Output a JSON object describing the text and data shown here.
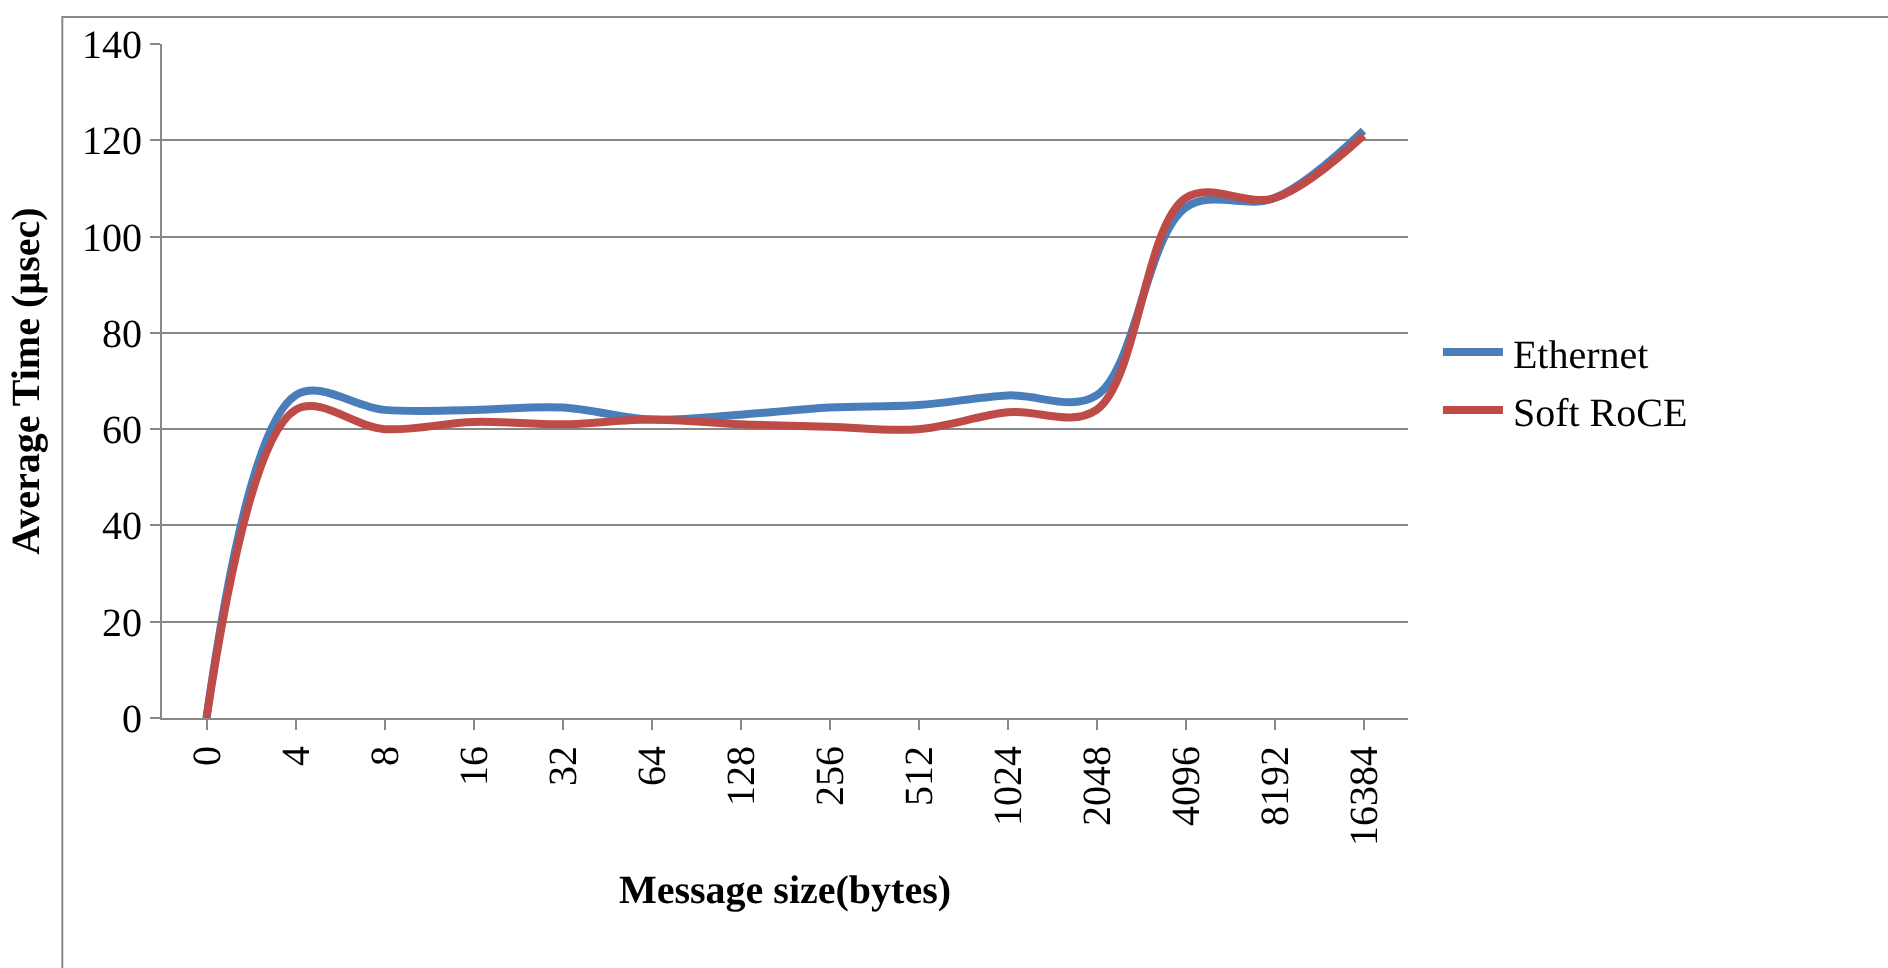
{
  "chart_data": {
    "type": "line",
    "xlabel": "Message size(bytes)",
    "ylabel": "Average Time (µsec)",
    "categories": [
      "0",
      "4",
      "8",
      "16",
      "32",
      "64",
      "128",
      "256",
      "512",
      "1024",
      "2048",
      "4096",
      "8192",
      "16384"
    ],
    "series": [
      {
        "name": "Ethernet",
        "color": "#4a7ebb",
        "values": [
          0,
          67,
          64,
          64,
          64.5,
          62,
          63,
          64.5,
          65,
          67,
          67,
          106,
          108,
          122
        ]
      },
      {
        "name": "Soft RoCE",
        "color": "#be4b48",
        "values": [
          0,
          64,
          60,
          61.5,
          61,
          62,
          61,
          60.5,
          60,
          63.5,
          64,
          108,
          108,
          121
        ]
      }
    ],
    "ylim": [
      0,
      140
    ],
    "yticks": [
      0,
      20,
      40,
      60,
      80,
      100,
      120,
      140
    ],
    "grid": "y",
    "legend": "right",
    "marker": "none",
    "line_style": "solid"
  }
}
